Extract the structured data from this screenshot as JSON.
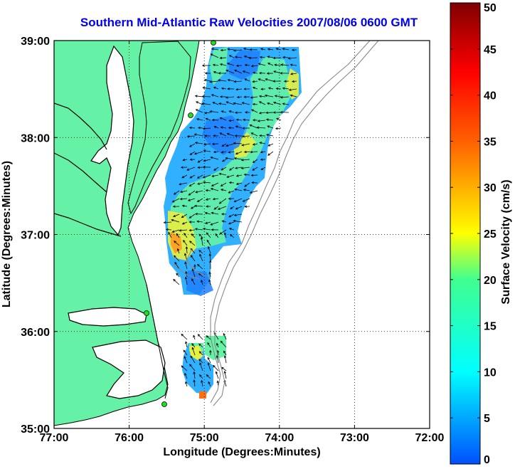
{
  "title": "Southern Mid-Atlantic Raw Velocities 2007/08/06 0600 GMT",
  "x_axis": {
    "label": "Longitude (Degrees:Minutes)",
    "ticks": [
      "77:00",
      "76:00",
      "75:00",
      "74:00",
      "73:00",
      "72:00"
    ]
  },
  "y_axis": {
    "label": "Latitude (Degrees:Minutes)",
    "ticks": [
      "39:00",
      "38:00",
      "37:00",
      "36:00",
      "35:00"
    ]
  },
  "colorbar": {
    "label": "Surface Velocity (cm/s)",
    "range": [
      0,
      50
    ],
    "ticks": [
      "50",
      "45",
      "40",
      "35",
      "30",
      "25",
      "20",
      "15",
      "10",
      "5",
      "0"
    ]
  },
  "map": {
    "lon_range": [
      -77,
      -72
    ],
    "lat_range": [
      35,
      39
    ],
    "grid": "dotted",
    "land_color": "#66f2a6",
    "water_color": "#ffffff",
    "station_color": "#22dd22"
  }
}
